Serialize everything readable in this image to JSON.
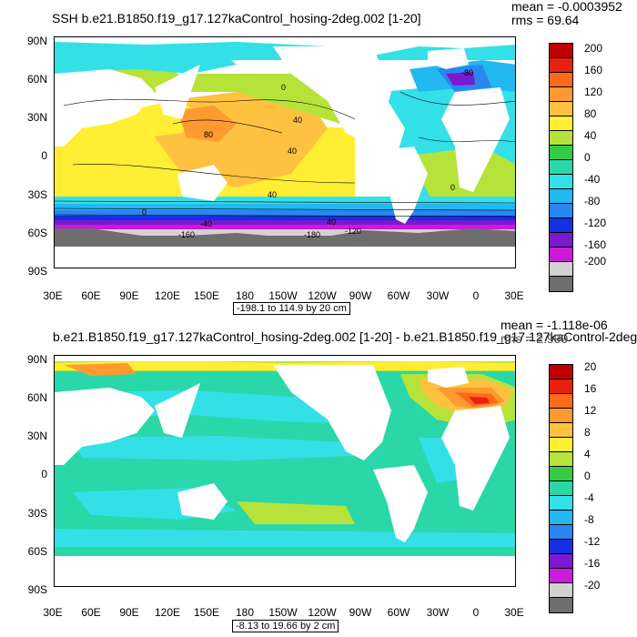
{
  "panels": [
    {
      "title": "SSH b.e21.B1850.f19_g17.127kaControl_hosing-2deg.002 [1-20]",
      "mean": "mean = -0.0003952",
      "rms": "rms = 69.64",
      "range": "-198.1 to 114.9 by 20 cm",
      "lat_labels": [
        "90N",
        "60N",
        "30N",
        "0",
        "30S",
        "60S",
        "90S"
      ],
      "lon_labels": [
        "30E",
        "60E",
        "90E",
        "120E",
        "150E",
        "180",
        "150W",
        "120W",
        "90W",
        "60W",
        "30W",
        "0",
        "30E"
      ],
      "colorbar_labels": [
        "200",
        "160",
        "120",
        "80",
        "40",
        "0",
        "-40",
        "-80",
        "-120",
        "-160",
        "-200"
      ],
      "colorbar_colors": [
        "#c00000",
        "#e82010",
        "#ff6a1a",
        "#ff9a30",
        "#ffc240",
        "#ffee33",
        "#b6e33a",
        "#33cc44",
        "#2ad7a8",
        "#33e0e8",
        "#22b8f0",
        "#2a86f0",
        "#1430e0",
        "#7a1ad0",
        "#cc1ad8",
        "#d2d2d2",
        "#6e6e6e"
      ],
      "contour_labels": [
        "0",
        "-80",
        "40",
        "80",
        "40",
        "40",
        "0",
        "0",
        "40",
        "-40",
        "-120",
        "-160",
        "-180"
      ]
    },
    {
      "title": "b.e21.B1850.f19_g17.127kaControl_hosing-2deg.002 [1-20] - b.e21.B1850.f19_g17.127kaControl-2deg.",
      "mean": "mean = -1.118e-06",
      "rms": "rms = 2.999",
      "range": "-8.13 to 19.66 by 2 cm",
      "lat_labels": [
        "90N",
        "60N",
        "30N",
        "0",
        "30S",
        "60S",
        "90S"
      ],
      "lon_labels": [
        "30E",
        "60E",
        "90E",
        "120E",
        "150E",
        "180",
        "150W",
        "120W",
        "90W",
        "60W",
        "30W",
        "0",
        "30E"
      ],
      "colorbar_labels": [
        "20",
        "16",
        "12",
        "8",
        "4",
        "0",
        "-4",
        "-8",
        "-12",
        "-16",
        "-20"
      ],
      "colorbar_colors": [
        "#c00000",
        "#e82010",
        "#ff6a1a",
        "#ff9a30",
        "#ffc240",
        "#ffee33",
        "#b6e33a",
        "#33cc44",
        "#2ad7a8",
        "#33e0e8",
        "#22b8f0",
        "#2a86f0",
        "#1430e0",
        "#7a1ad0",
        "#cc1ad8",
        "#d2d2d2",
        "#6e6e6e"
      ]
    }
  ]
}
